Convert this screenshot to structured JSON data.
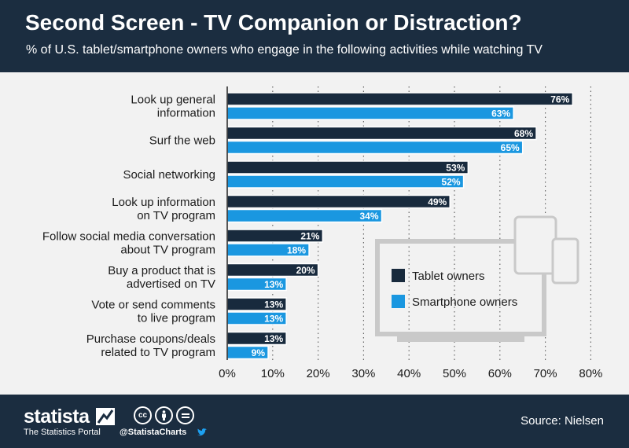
{
  "header": {
    "title": "Second Screen - TV Companion or Distraction?",
    "subtitle": "% of U.S. tablet/smartphone owners who engage in the following activities while watching TV"
  },
  "footer": {
    "brand": "statista",
    "tagline": "The Statistics Portal",
    "handle": "@StatistaCharts",
    "source": "Source: Nielsen",
    "license_icons": [
      "cc-icon",
      "by-icon",
      "nd-icon"
    ]
  },
  "colors": {
    "header_bg": "#1b2d40",
    "tablet": "#182a3d",
    "smartphone": "#1a97e0",
    "background": "#f2f2f2"
  },
  "chart_data": {
    "type": "bar",
    "orientation": "horizontal",
    "categories": [
      [
        "Look up general",
        "information"
      ],
      [
        "Surf the web"
      ],
      [
        "Social networking"
      ],
      [
        "Look up information",
        "on TV program"
      ],
      [
        "Follow social media conversation",
        "about TV program"
      ],
      [
        "Buy a product that is",
        "advertised on TV"
      ],
      [
        "Vote or send comments",
        "to live program"
      ],
      [
        "Purchase coupons/deals",
        "related to TV program"
      ]
    ],
    "series": [
      {
        "name": "Tablet owners",
        "values": [
          76,
          68,
          53,
          49,
          21,
          20,
          13,
          13
        ]
      },
      {
        "name": "Smartphone owners",
        "values": [
          63,
          65,
          52,
          34,
          18,
          13,
          13,
          9
        ]
      }
    ],
    "value_suffix": "%",
    "xlim": [
      0,
      80
    ],
    "xticks": [
      0,
      10,
      20,
      30,
      40,
      50,
      60,
      70,
      80
    ],
    "xtick_suffix": "%",
    "grid": "vertical dotted",
    "legend": "inside, lower right (drawn as a TV screen with tablet and phone icons)"
  }
}
